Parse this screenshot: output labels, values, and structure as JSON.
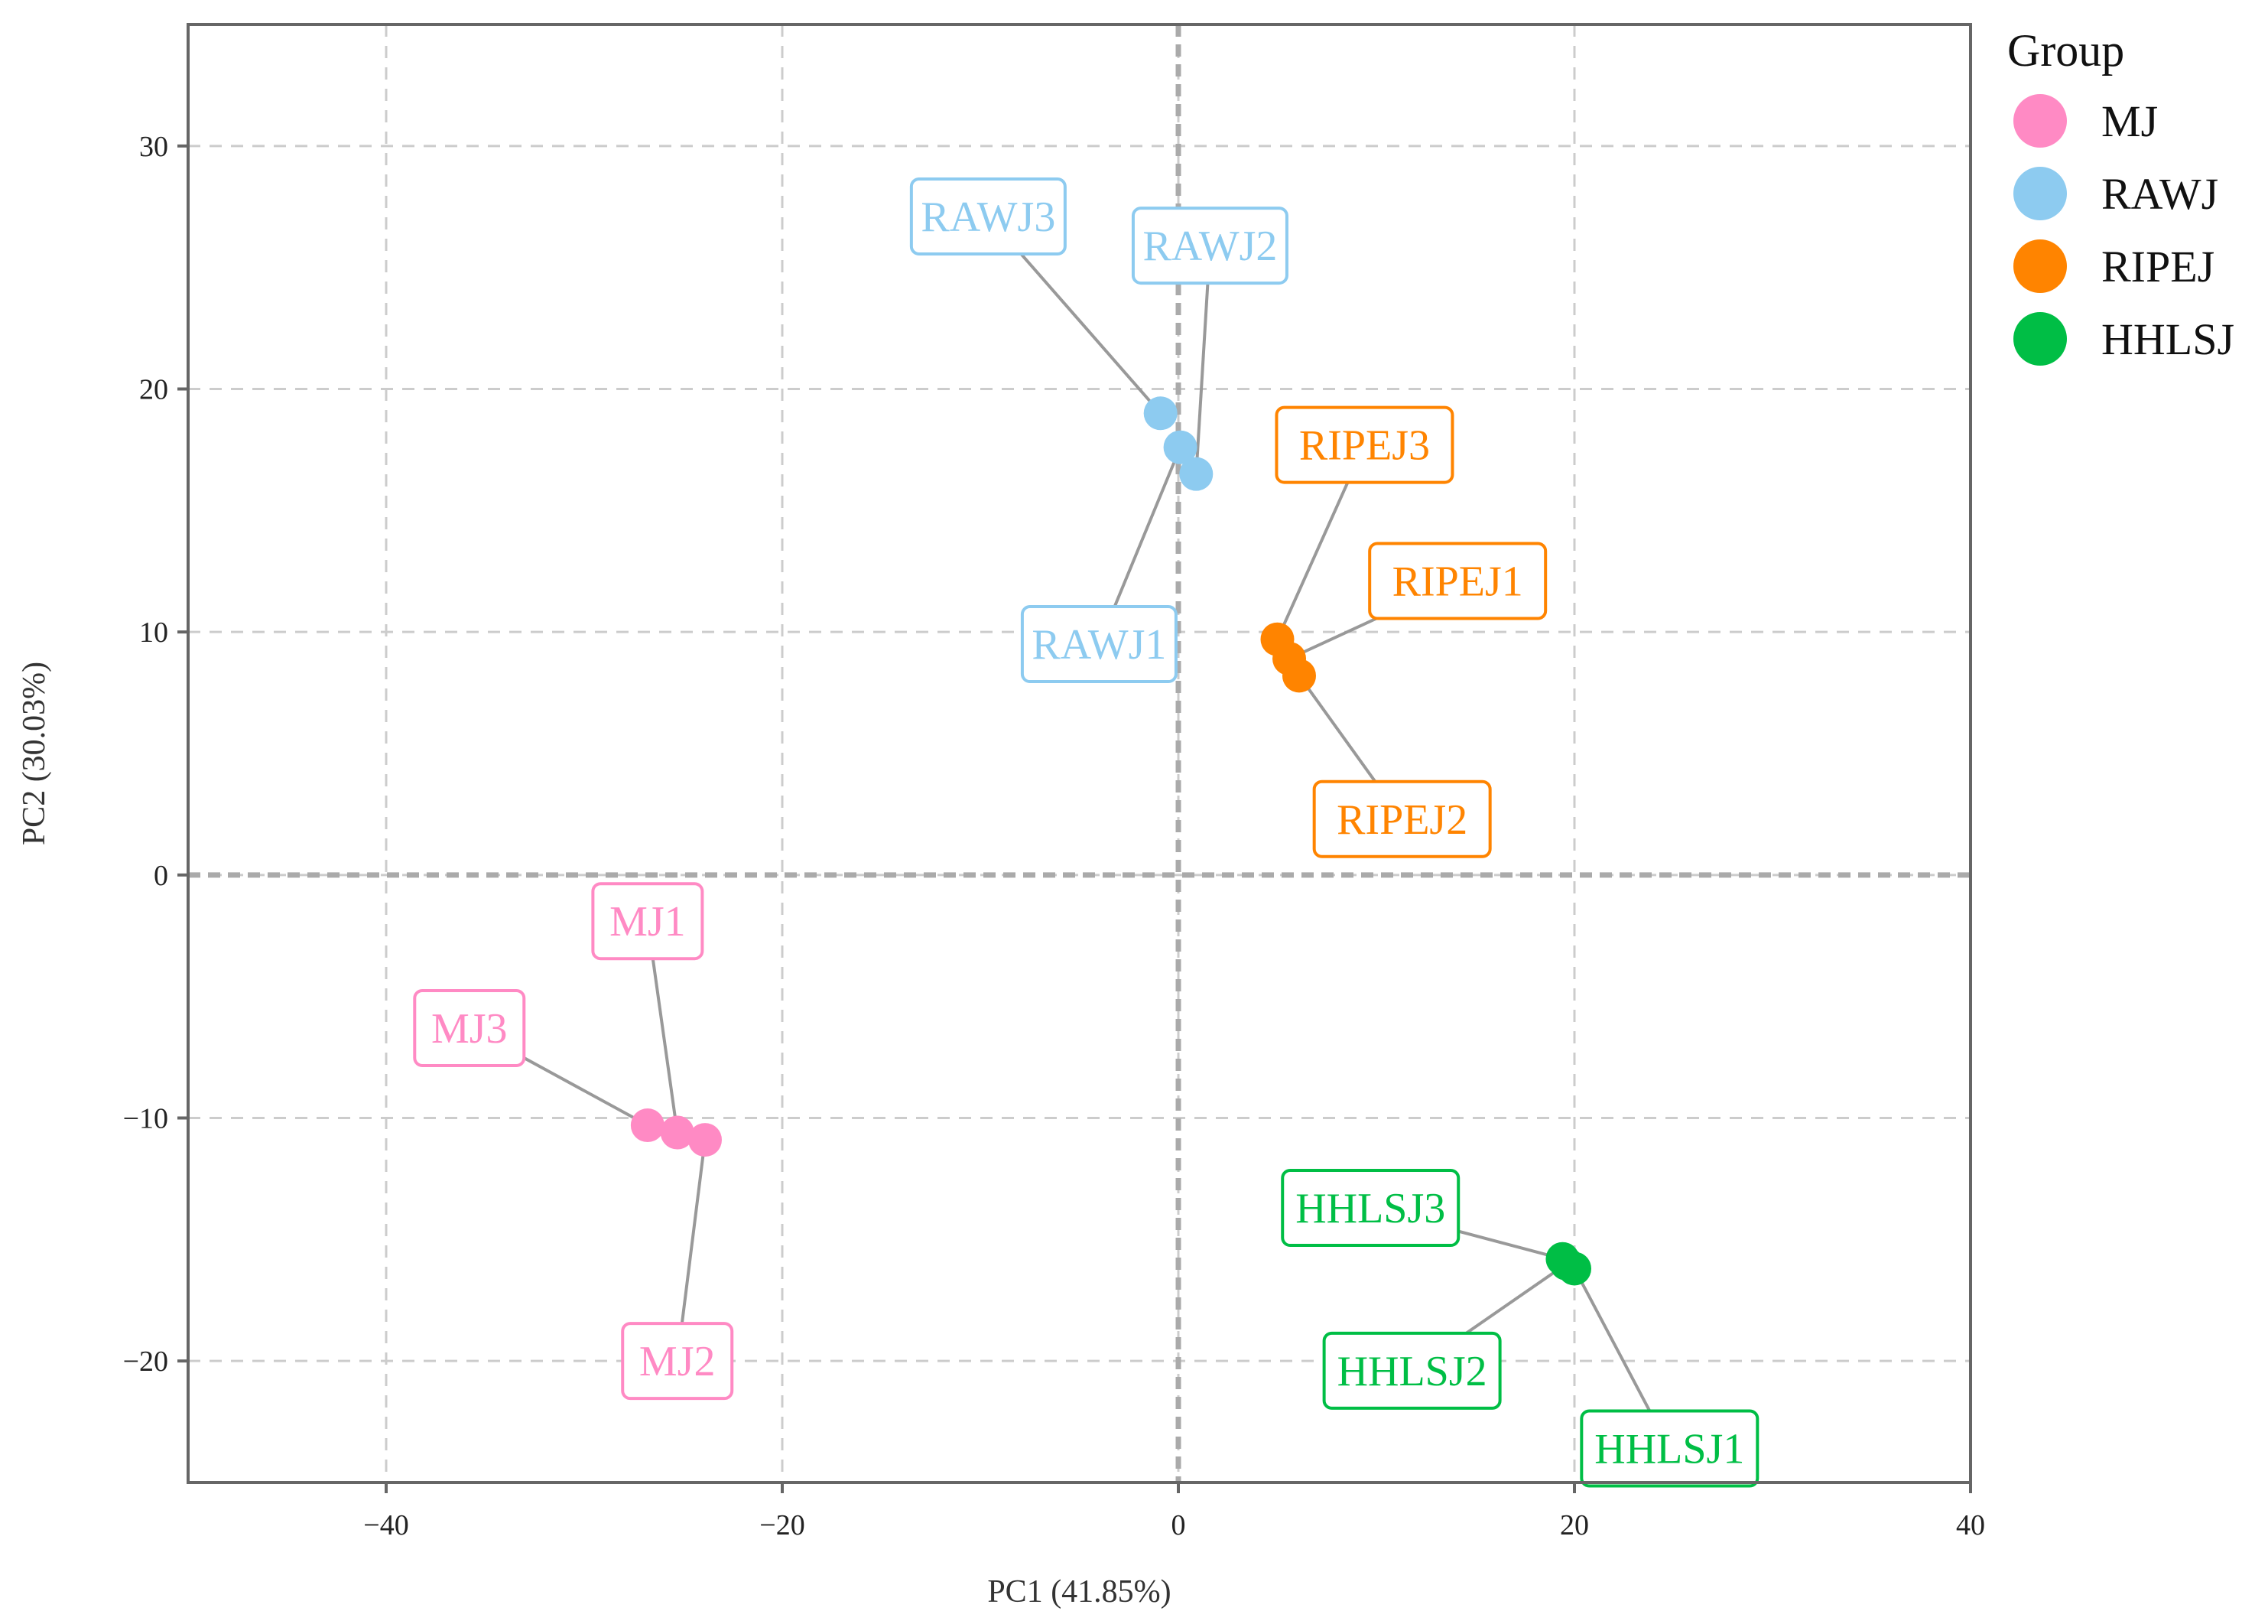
{
  "chart_data": {
    "type": "scatter",
    "title": "",
    "xlabel": "PC1 (41.85%)",
    "ylabel": "PC2 (30.03%)",
    "xlim": [
      -50,
      40
    ],
    "ylim": [
      -25,
      35
    ],
    "xticks": [
      -40,
      -20,
      0,
      20,
      40
    ],
    "yticks": [
      -20,
      -10,
      0,
      10,
      20,
      30
    ],
    "xtick_labels": [
      "−40",
      "−20",
      "0",
      "20",
      "40"
    ],
    "ytick_labels": [
      "−20",
      "−10",
      "0",
      "10",
      "20",
      "30"
    ],
    "grid": true,
    "legend_title": "Group",
    "legend_position": "right",
    "groups": [
      {
        "name": "MJ",
        "color": "#FF8AC4"
      },
      {
        "name": "RAWJ",
        "color": "#8DCBF0"
      },
      {
        "name": "RIPEJ",
        "color": "#FF8400"
      },
      {
        "name": "HHLSJ",
        "color": "#00BE45"
      }
    ],
    "points": [
      {
        "label": "MJ1",
        "group": "MJ",
        "x": -25.3,
        "y": -10.6,
        "label_x": -26.8,
        "label_y": -1.9
      },
      {
        "label": "MJ2",
        "group": "MJ",
        "x": -23.9,
        "y": -10.9,
        "label_x": -25.3,
        "label_y": -20.0
      },
      {
        "label": "MJ3",
        "group": "MJ",
        "x": -26.8,
        "y": -10.3,
        "label_x": -35.8,
        "label_y": -6.3
      },
      {
        "label": "RAWJ1",
        "group": "RAWJ",
        "x": 0.1,
        "y": 17.6,
        "label_x": -4.0,
        "label_y": 9.5
      },
      {
        "label": "RAWJ2",
        "group": "RAWJ",
        "x": 0.9,
        "y": 16.5,
        "label_x": 1.6,
        "label_y": 25.9
      },
      {
        "label": "RAWJ3",
        "group": "RAWJ",
        "x": -0.9,
        "y": 19.0,
        "label_x": -9.6,
        "label_y": 27.1
      },
      {
        "label": "RIPEJ1",
        "group": "RIPEJ",
        "x": 5.6,
        "y": 8.9,
        "label_x": 14.1,
        "label_y": 12.1
      },
      {
        "label": "RIPEJ2",
        "group": "RIPEJ",
        "x": 6.1,
        "y": 8.2,
        "label_x": 11.3,
        "label_y": 2.3
      },
      {
        "label": "RIPEJ3",
        "group": "RIPEJ",
        "x": 5.0,
        "y": 9.7,
        "label_x": 9.4,
        "label_y": 17.7
      },
      {
        "label": "HHLSJ1",
        "group": "HHLSJ",
        "x": 20.0,
        "y": -16.2,
        "label_x": 24.8,
        "label_y": -23.6
      },
      {
        "label": "HHLSJ2",
        "group": "HHLSJ",
        "x": 19.6,
        "y": -16.0,
        "label_x": 11.8,
        "label_y": -20.4
      },
      {
        "label": "HHLSJ3",
        "group": "HHLSJ",
        "x": 19.4,
        "y": -15.8,
        "label_x": 9.7,
        "label_y": -13.7
      }
    ]
  }
}
